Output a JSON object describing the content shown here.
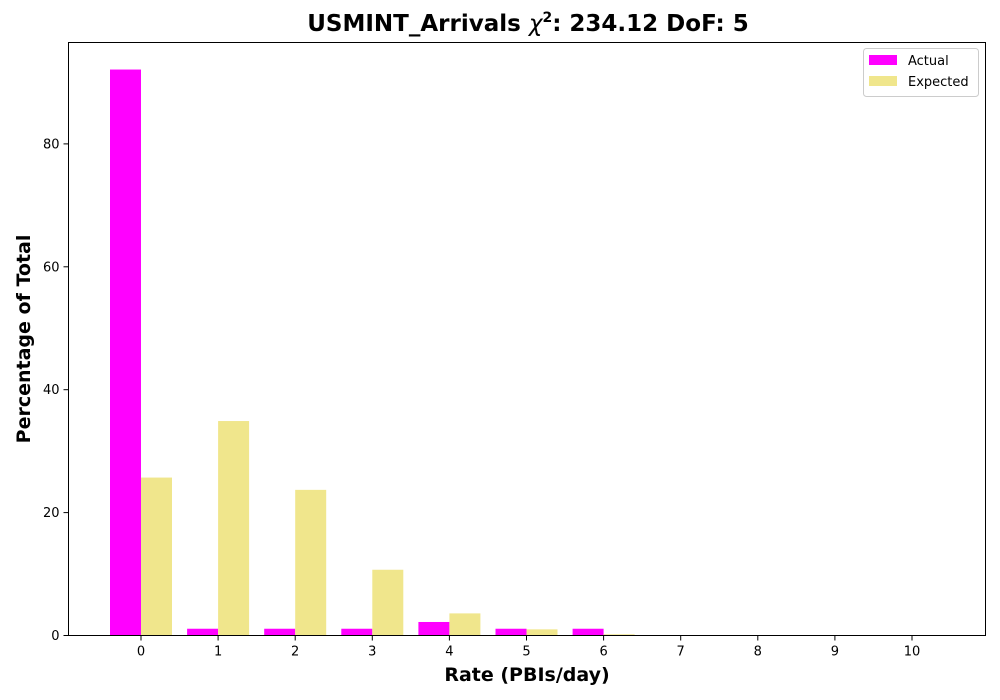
{
  "chart_data": {
    "type": "bar",
    "title": "USMINT_Arrivals",
    "title_symbol": "χ",
    "title_sup": "2",
    "title_suffix": ": 234.12 DoF: 5",
    "xlabel": "Rate (PBIs/day)",
    "ylabel": "Percentage of Total",
    "categories": [
      "0",
      "1",
      "2",
      "3",
      "4",
      "5",
      "6",
      "7",
      "8",
      "9",
      "10"
    ],
    "yticks": [
      0,
      20,
      40,
      60,
      80
    ],
    "ylim": [
      0,
      96.5
    ],
    "grid": false,
    "legend_position": "top-right",
    "series": [
      {
        "name": "Actual",
        "color": "#ff00ff",
        "values": [
          92.1,
          1.1,
          1.1,
          1.1,
          2.2,
          1.1,
          1.1,
          0,
          0,
          0,
          0
        ]
      },
      {
        "name": "Expected",
        "color": "#f0e68c",
        "values": [
          25.7,
          34.9,
          23.7,
          10.7,
          3.6,
          1.0,
          0.2,
          0.05,
          0.01,
          0,
          0
        ]
      }
    ]
  }
}
